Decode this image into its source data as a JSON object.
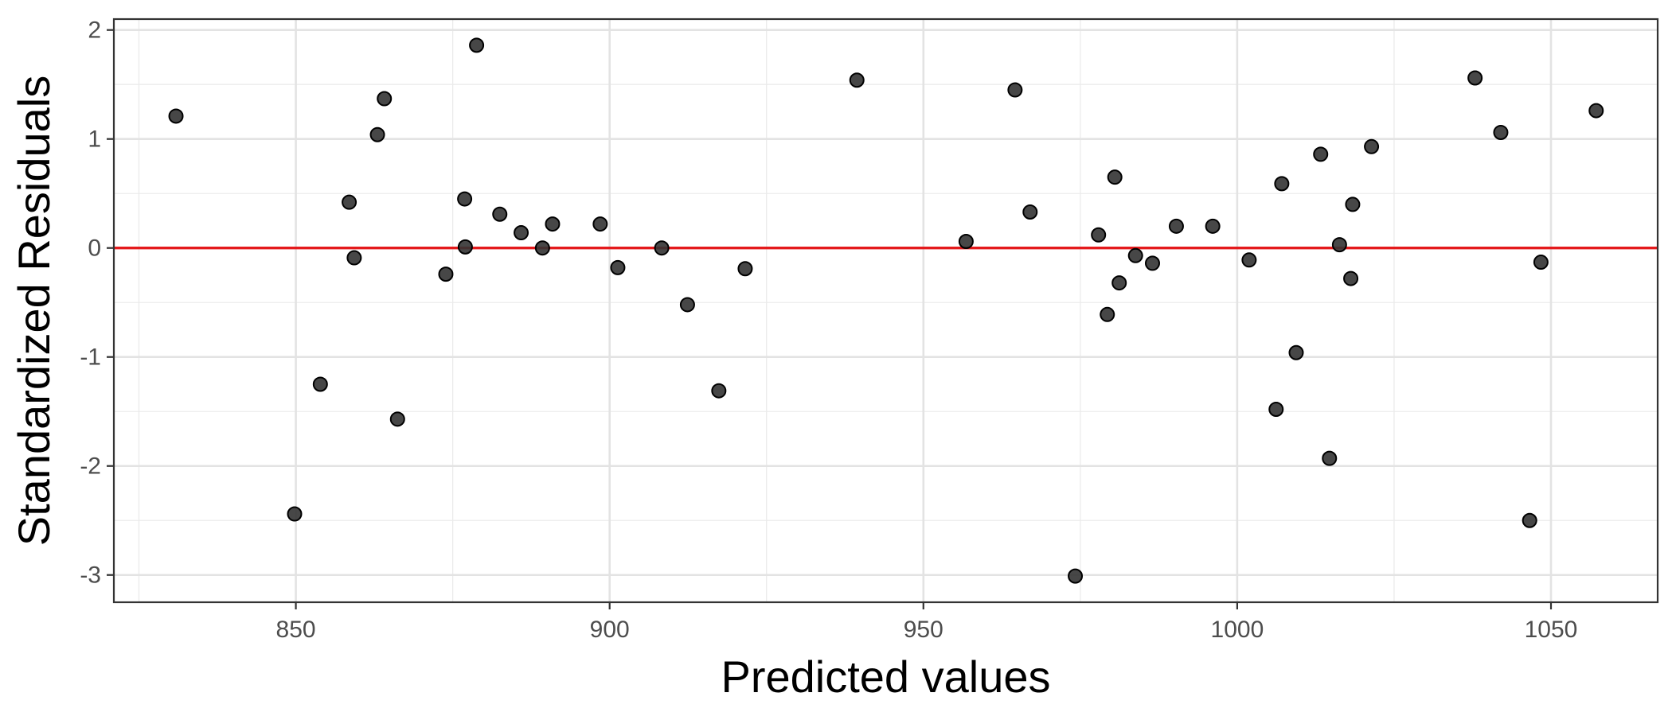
{
  "chart_data": {
    "type": "scatter",
    "title": "",
    "xlabel": "Predicted values",
    "ylabel": "Standardized Residuals",
    "xlim": [
      821,
      1067
    ],
    "ylim": [
      -3.25,
      2.1
    ],
    "x_ticks": [
      850,
      900,
      950,
      1000,
      1050
    ],
    "y_ticks": [
      2,
      1,
      0,
      -1,
      -2,
      -3
    ],
    "x_tick_labels": [
      "850",
      "900",
      "950",
      "1000",
      "1050"
    ],
    "y_tick_labels": [
      "2",
      "1",
      "0",
      "-1",
      "-2",
      "-3"
    ],
    "grid": true,
    "reference_line": {
      "y": 0,
      "color": "#e41a1c"
    },
    "point_color": "#333333",
    "points": [
      {
        "x": 830.9,
        "y": 1.21
      },
      {
        "x": 849.8,
        "y": -2.44
      },
      {
        "x": 853.9,
        "y": -1.25
      },
      {
        "x": 858.5,
        "y": 0.42
      },
      {
        "x": 859.3,
        "y": -0.09
      },
      {
        "x": 863.0,
        "y": 1.04
      },
      {
        "x": 864.1,
        "y": 1.37
      },
      {
        "x": 866.2,
        "y": -1.57
      },
      {
        "x": 873.9,
        "y": -0.24
      },
      {
        "x": 876.9,
        "y": 0.45
      },
      {
        "x": 877.0,
        "y": 0.01
      },
      {
        "x": 878.8,
        "y": 1.86
      },
      {
        "x": 882.5,
        "y": 0.31
      },
      {
        "x": 885.9,
        "y": 0.14
      },
      {
        "x": 889.3,
        "y": 0.0
      },
      {
        "x": 890.9,
        "y": 0.22
      },
      {
        "x": 898.5,
        "y": 0.22
      },
      {
        "x": 901.3,
        "y": -0.18
      },
      {
        "x": 908.3,
        "y": 0.0
      },
      {
        "x": 912.4,
        "y": -0.52
      },
      {
        "x": 917.4,
        "y": -1.31
      },
      {
        "x": 921.6,
        "y": -0.19
      },
      {
        "x": 939.4,
        "y": 1.54
      },
      {
        "x": 956.8,
        "y": 0.06
      },
      {
        "x": 964.6,
        "y": 1.45
      },
      {
        "x": 967.0,
        "y": 0.33
      },
      {
        "x": 974.2,
        "y": -3.01
      },
      {
        "x": 977.9,
        "y": 0.12
      },
      {
        "x": 979.3,
        "y": -0.61
      },
      {
        "x": 980.5,
        "y": 0.65
      },
      {
        "x": 981.2,
        "y": -0.32
      },
      {
        "x": 983.8,
        "y": -0.07
      },
      {
        "x": 986.5,
        "y": -0.14
      },
      {
        "x": 990.3,
        "y": 0.2
      },
      {
        "x": 996.1,
        "y": 0.2
      },
      {
        "x": 1001.9,
        "y": -0.11
      },
      {
        "x": 1006.2,
        "y": -1.48
      },
      {
        "x": 1007.1,
        "y": 0.59
      },
      {
        "x": 1009.4,
        "y": -0.96
      },
      {
        "x": 1013.3,
        "y": 0.86
      },
      {
        "x": 1014.7,
        "y": -1.93
      },
      {
        "x": 1016.3,
        "y": 0.03
      },
      {
        "x": 1018.1,
        "y": -0.28
      },
      {
        "x": 1018.4,
        "y": 0.4
      },
      {
        "x": 1021.4,
        "y": 0.93
      },
      {
        "x": 1037.9,
        "y": 1.56
      },
      {
        "x": 1042.0,
        "y": 1.06
      },
      {
        "x": 1046.6,
        "y": -2.5
      },
      {
        "x": 1048.4,
        "y": -0.13
      },
      {
        "x": 1057.2,
        "y": 1.26
      }
    ]
  }
}
